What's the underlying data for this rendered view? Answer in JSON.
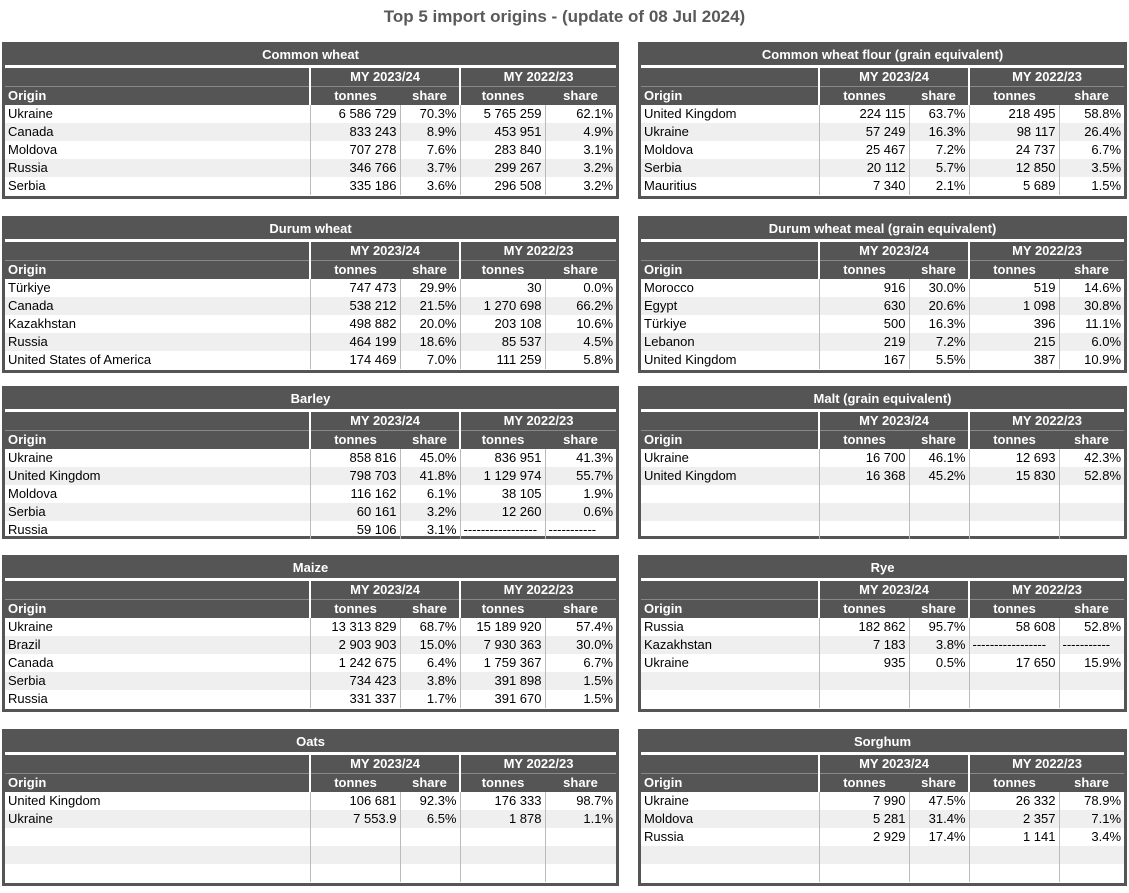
{
  "title": "Top 5 import origins - (update of 08 Jul 2024)",
  "tables": [
    {
      "title": "Common wheat",
      "origin_label": "Origin",
      "periods": [
        "MY 2023/24",
        "MY 2022/23"
      ],
      "columns": [
        "tonnes",
        "share",
        "tonnes",
        "share"
      ],
      "rows": [
        [
          "Ukraine",
          "6 586 729",
          "70.3%",
          "5 765 259",
          "62.1%"
        ],
        [
          "Canada",
          "833 243",
          "8.9%",
          "453 951",
          "4.9%"
        ],
        [
          "Moldova",
          "707 278",
          "7.6%",
          "283 840",
          "3.1%"
        ],
        [
          "Russia",
          "346 766",
          "3.7%",
          "299 267",
          "3.2%"
        ],
        [
          "Serbia",
          "335 186",
          "3.6%",
          "296 508",
          "3.2%"
        ]
      ]
    },
    {
      "title": "Common wheat flour (grain equivalent)",
      "origin_label": "Origin",
      "periods": [
        "MY 2023/24",
        "MY 2022/23"
      ],
      "columns": [
        "tonnes",
        "share",
        "tonnes",
        "share"
      ],
      "rows": [
        [
          "United Kingdom",
          "224 115",
          "63.7%",
          "218 495",
          "58.8%"
        ],
        [
          "Ukraine",
          "57 249",
          "16.3%",
          "98 117",
          "26.4%"
        ],
        [
          "Moldova",
          "25 467",
          "7.2%",
          "24 737",
          "6.7%"
        ],
        [
          "Serbia",
          "20 112",
          "5.7%",
          "12 850",
          "3.5%"
        ],
        [
          "Mauritius",
          "7 340",
          "2.1%",
          "5 689",
          "1.5%"
        ]
      ]
    },
    {
      "title": "Durum wheat",
      "origin_label": "Origin",
      "periods": [
        "MY 2023/24",
        "MY 2022/23"
      ],
      "columns": [
        "tonnes",
        "share",
        "tonnes",
        "share"
      ],
      "rows": [
        [
          "Türkiye",
          "747 473",
          "29.9%",
          "30",
          "0.0%"
        ],
        [
          "Canada",
          "538 212",
          "21.5%",
          "1 270 698",
          "66.2%"
        ],
        [
          "Kazakhstan",
          "498 882",
          "20.0%",
          "203 108",
          "10.6%"
        ],
        [
          "Russia",
          "464 199",
          "18.6%",
          "85 537",
          "4.5%"
        ],
        [
          "United States of America",
          "174 469",
          "7.0%",
          "111 259",
          "5.8%"
        ]
      ]
    },
    {
      "title": "Durum wheat meal (grain equivalent)",
      "origin_label": "Origin",
      "periods": [
        "MY 2023/24",
        "MY 2022/23"
      ],
      "columns": [
        "tonnes",
        "share",
        "tonnes",
        "share"
      ],
      "rows": [
        [
          "Morocco",
          "916",
          "30.0%",
          "519",
          "14.6%"
        ],
        [
          "Egypt",
          "630",
          "20.6%",
          "1 098",
          "30.8%"
        ],
        [
          "Türkiye",
          "500",
          "16.3%",
          "396",
          "11.1%"
        ],
        [
          "Lebanon",
          "219",
          "7.2%",
          "215",
          "6.0%"
        ],
        [
          "United Kingdom",
          "167",
          "5.5%",
          "387",
          "10.9%"
        ]
      ]
    },
    {
      "title": "Barley",
      "origin_label": "Origin",
      "periods": [
        "MY 2023/24",
        "MY 2022/23"
      ],
      "columns": [
        "tonnes",
        "share",
        "tonnes",
        "share"
      ],
      "rows": [
        [
          "Ukraine",
          "858 816",
          "45.0%",
          "836 951",
          "41.3%"
        ],
        [
          "United Kingdom",
          "798 703",
          "41.8%",
          "1 129 974",
          "55.7%"
        ],
        [
          "Moldova",
          "116 162",
          "6.1%",
          "38 105",
          "1.9%"
        ],
        [
          "Serbia",
          "60 161",
          "3.2%",
          "12 260",
          "0.6%"
        ],
        [
          "Russia",
          "59 106",
          "3.1%",
          "-----------------",
          "-----------"
        ]
      ]
    },
    {
      "title": "Malt (grain equivalent)",
      "origin_label": "Origin",
      "periods": [
        "MY 2023/24",
        "MY 2022/23"
      ],
      "columns": [
        "tonnes",
        "share",
        "tonnes",
        "share"
      ],
      "rows": [
        [
          "Ukraine",
          "16 700",
          "46.1%",
          "12 693",
          "42.3%"
        ],
        [
          "United Kingdom",
          "16 368",
          "45.2%",
          "15 830",
          "52.8%"
        ]
      ]
    },
    {
      "title": "Maize",
      "origin_label": "Origin",
      "periods": [
        "MY 2023/24",
        "MY 2022/23"
      ],
      "columns": [
        "tonnes",
        "share",
        "tonnes",
        "share"
      ],
      "rows": [
        [
          "Ukraine",
          "13 313 829",
          "68.7%",
          "15 189 920",
          "57.4%"
        ],
        [
          "Brazil",
          "2 903 903",
          "15.0%",
          "7 930 363",
          "30.0%"
        ],
        [
          "Canada",
          "1 242 675",
          "6.4%",
          "1 759 367",
          "6.7%"
        ],
        [
          "Serbia",
          "734 423",
          "3.8%",
          "391 898",
          "1.5%"
        ],
        [
          "Russia",
          "331 337",
          "1.7%",
          "391 670",
          "1.5%"
        ]
      ]
    },
    {
      "title": "Rye",
      "origin_label": "Origin",
      "periods": [
        "MY 2023/24",
        "MY 2022/23"
      ],
      "columns": [
        "tonnes",
        "share",
        "tonnes",
        "share"
      ],
      "rows": [
        [
          "Russia",
          "182 862",
          "95.7%",
          "58 608",
          "52.8%"
        ],
        [
          "Kazakhstan",
          "7 183",
          "3.8%",
          "-----------------",
          "-----------"
        ],
        [
          "Ukraine",
          "935",
          "0.5%",
          "17 650",
          "15.9%"
        ]
      ]
    },
    {
      "title": "Oats",
      "origin_label": "Origin",
      "periods": [
        "MY 2023/24",
        "MY 2022/23"
      ],
      "columns": [
        "tonnes",
        "share",
        "tonnes",
        "share"
      ],
      "rows": [
        [
          "United Kingdom",
          "106 681",
          "92.3%",
          "176 333",
          "98.7%"
        ],
        [
          "Ukraine",
          "7 553.9",
          "6.5%",
          "1 878",
          "1.1%"
        ]
      ]
    },
    {
      "title": "Sorghum",
      "origin_label": "Origin",
      "periods": [
        "MY 2023/24",
        "MY 2022/23"
      ],
      "columns": [
        "tonnes",
        "share",
        "tonnes",
        "share"
      ],
      "rows": [
        [
          "Ukraine",
          "7 990",
          "47.5%",
          "26 332",
          "78.9%"
        ],
        [
          "Moldova",
          "5 281",
          "31.4%",
          "2 357",
          "7.1%"
        ],
        [
          "Russia",
          "2 929",
          "17.4%",
          "1 141",
          "3.4%"
        ]
      ]
    }
  ]
}
